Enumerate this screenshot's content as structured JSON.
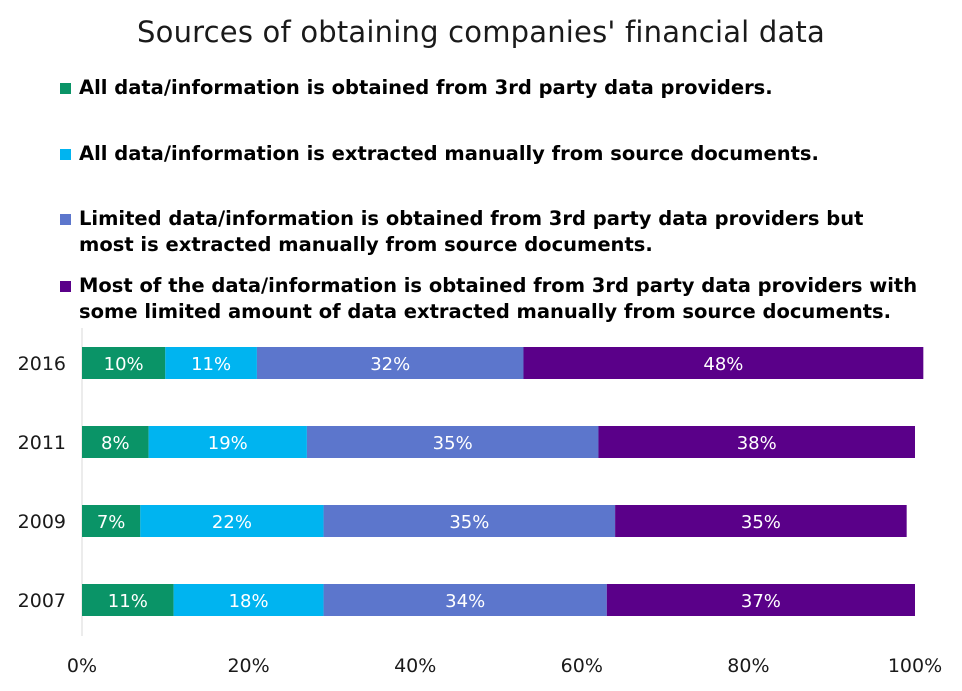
{
  "chart_data": {
    "type": "bar",
    "orientation": "horizontal",
    "stacked": true,
    "title": "Sources of obtaining companies' financial data",
    "categories": [
      "2016",
      "2011",
      "2009",
      "2007"
    ],
    "series": [
      {
        "name": "All data/information is obtained from 3rd party data providers.",
        "color": "#0a9467",
        "values": [
          10,
          8,
          7,
          11
        ]
      },
      {
        "name": "All data/information is extracted manually from source documents.",
        "color": "#00b4f0",
        "values": [
          11,
          19,
          22,
          18
        ]
      },
      {
        "name": "Limited data/information is obtained from 3rd party data providers but most is extracted manually from source documents.",
        "color": "#5c76cc",
        "values": [
          32,
          35,
          35,
          34
        ]
      },
      {
        "name": "Most of the data/information is obtained from 3rd party data providers with some limited amount of data extracted manually from source documents.",
        "color": "#5a0089",
        "values": [
          48,
          38,
          35,
          37
        ]
      }
    ],
    "data_labels": [
      [
        "10%",
        "8%",
        "7%",
        "11%"
      ],
      [
        "11%",
        "19%",
        "22%",
        "18%"
      ],
      [
        "32%",
        "35%",
        "35%",
        "34%"
      ],
      [
        "48%",
        "38%",
        "35%",
        "37%"
      ]
    ],
    "xlim": [
      0,
      100
    ],
    "x_ticks": [
      0,
      20,
      40,
      60,
      80,
      100
    ],
    "x_tick_labels": [
      "0%",
      "20%",
      "40%",
      "60%",
      "80%",
      "100%"
    ],
    "xlabel": "",
    "ylabel": "",
    "legend_position": "top",
    "grid": false
  }
}
